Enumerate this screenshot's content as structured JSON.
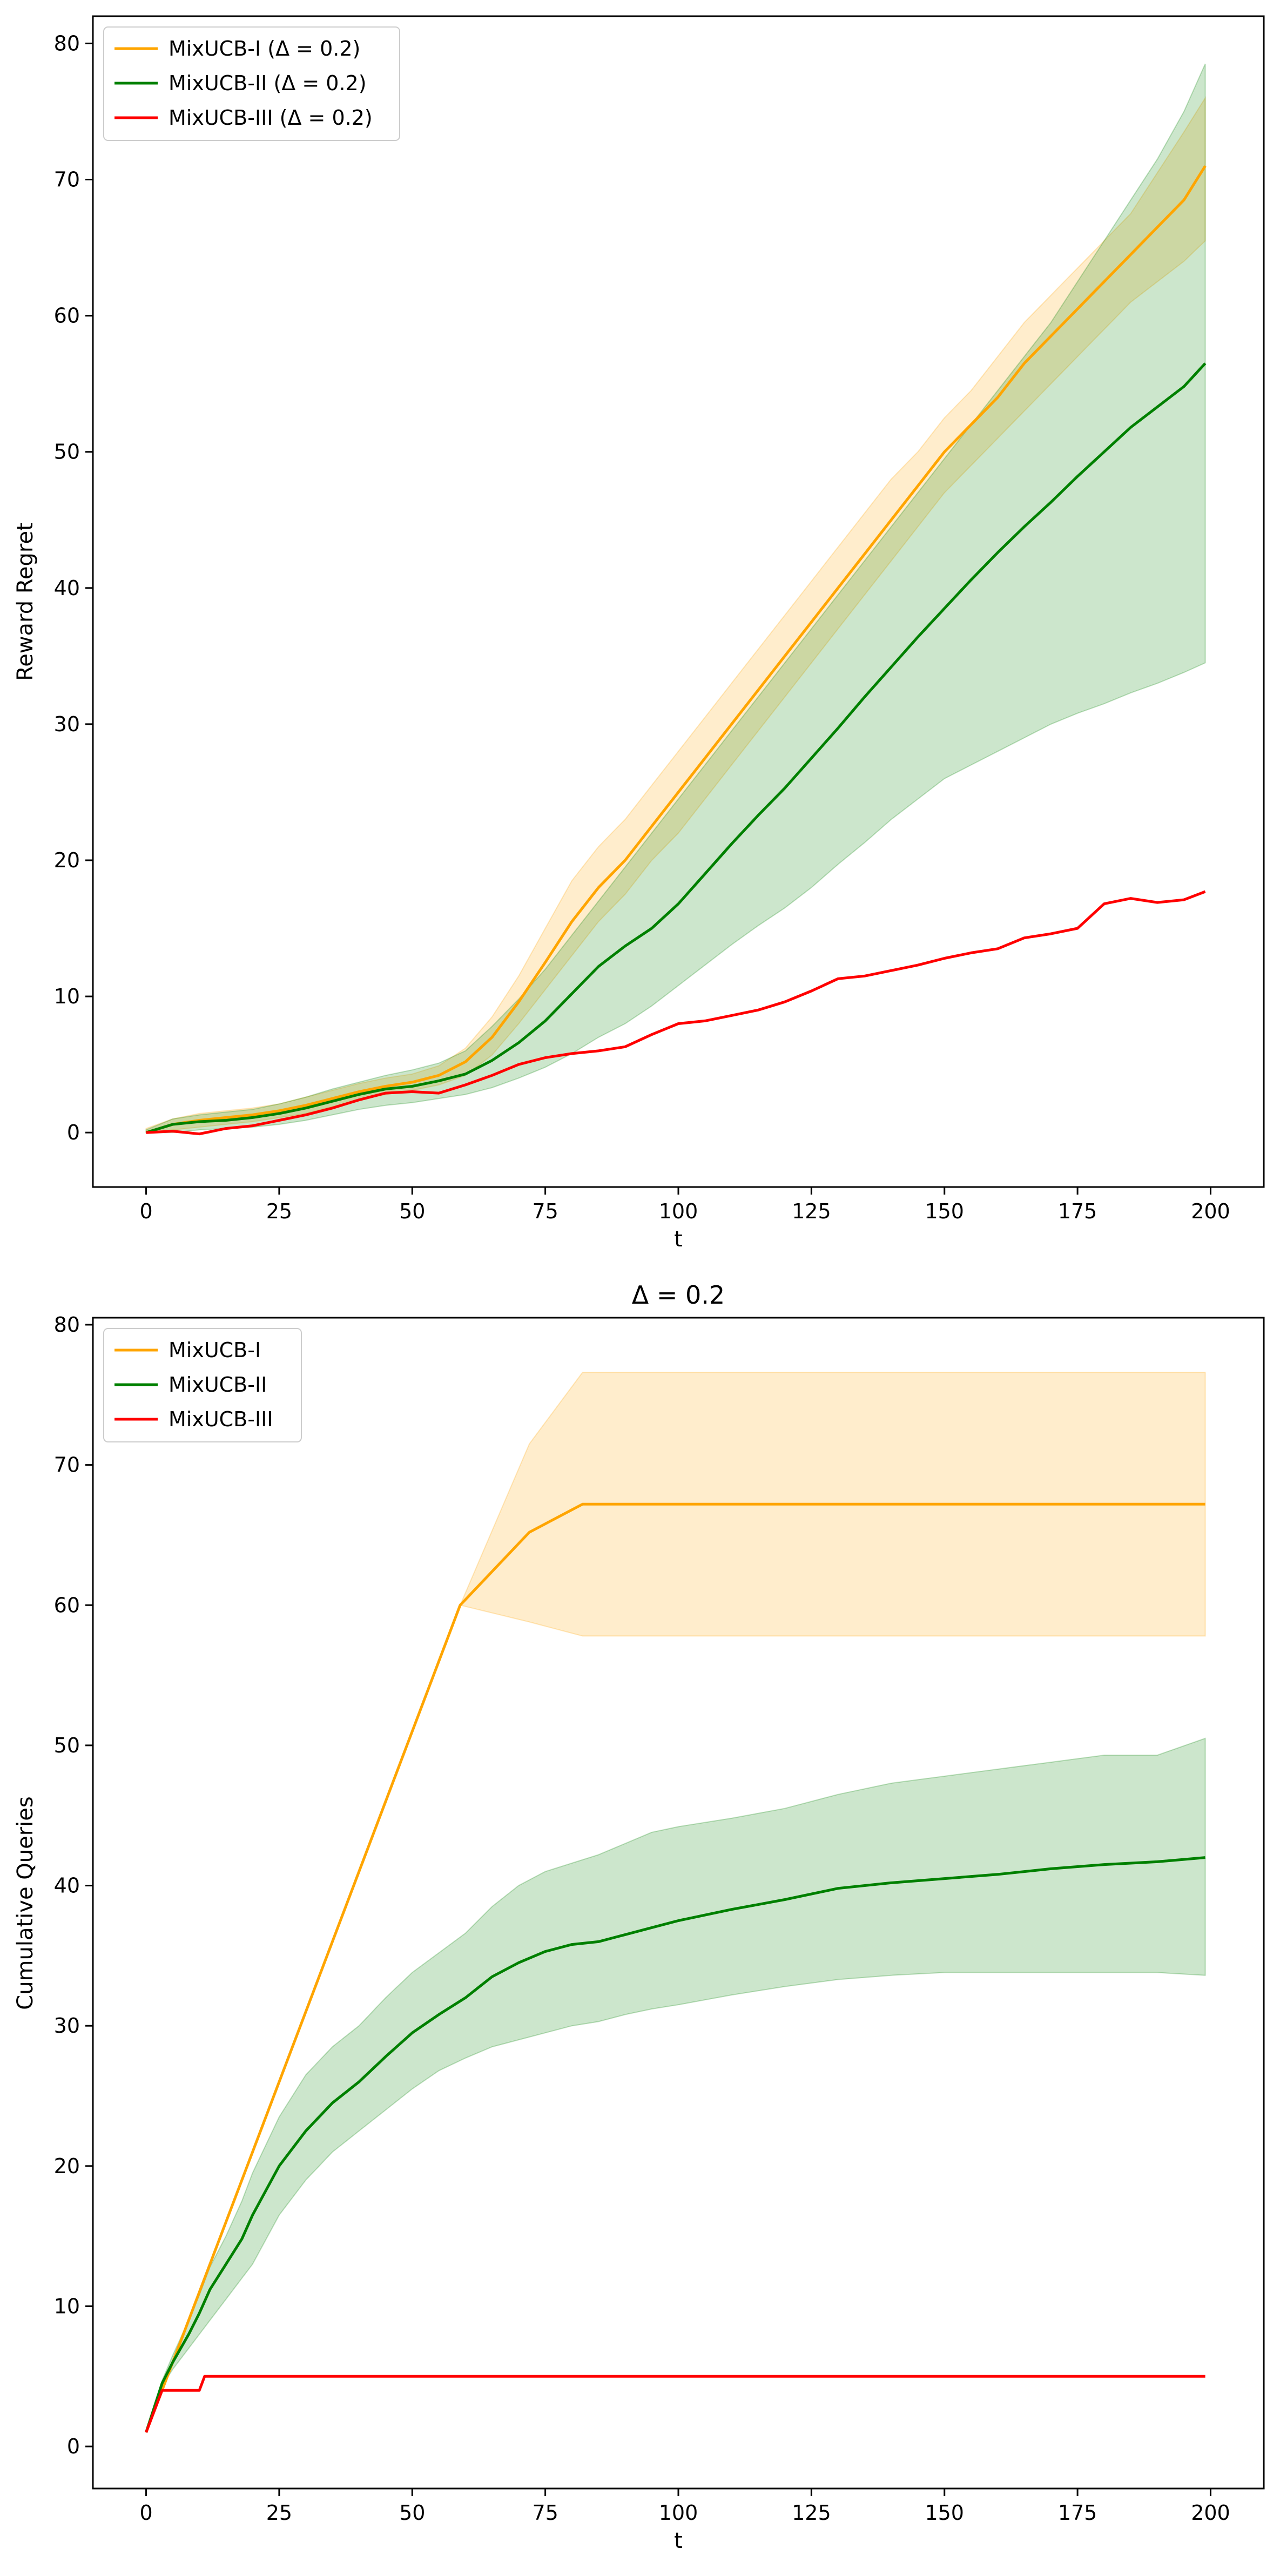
{
  "chart_data": [
    {
      "type": "line",
      "title": "",
      "xlabel": "t",
      "ylabel": "Reward Regret",
      "xlim": [
        -10,
        210
      ],
      "ylim": [
        -4,
        82
      ],
      "xticks": [
        0,
        25,
        50,
        75,
        100,
        125,
        150,
        175,
        200
      ],
      "yticks": [
        0,
        10,
        20,
        30,
        40,
        50,
        60,
        70,
        80
      ],
      "grid": false,
      "legend_position": "top-left",
      "series": [
        {
          "name": "MixUCB-I (Δ = 0.2)",
          "color": "#ffa500",
          "x": [
            0,
            5,
            10,
            15,
            20,
            25,
            30,
            35,
            40,
            45,
            50,
            55,
            60,
            65,
            70,
            75,
            80,
            85,
            90,
            95,
            100,
            105,
            110,
            115,
            120,
            125,
            130,
            135,
            140,
            145,
            150,
            155,
            160,
            165,
            170,
            175,
            180,
            185,
            190,
            195,
            199
          ],
          "y": [
            0,
            0.6,
            0.9,
            1.1,
            1.3,
            1.6,
            2.0,
            2.5,
            3.0,
            3.4,
            3.7,
            4.2,
            5.2,
            7.0,
            9.6,
            12.5,
            15.5,
            18.0,
            20.0,
            22.5,
            25.0,
            27.5,
            30.0,
            32.5,
            35.0,
            37.5,
            40.0,
            42.5,
            45.0,
            47.5,
            50.0,
            52.0,
            54.0,
            56.5,
            58.5,
            60.5,
            62.5,
            64.5,
            66.5,
            68.5,
            71.0
          ],
          "lower": [
            0,
            0.2,
            0.4,
            0.6,
            0.8,
            1.1,
            1.4,
            1.9,
            2.4,
            2.8,
            3.1,
            3.5,
            4.2,
            5.7,
            8.0,
            10.5,
            13.0,
            15.5,
            17.5,
            20.0,
            22.0,
            24.5,
            27.0,
            29.5,
            32.0,
            34.5,
            37.0,
            39.5,
            42.0,
            44.5,
            47.0,
            49.0,
            51.0,
            53.0,
            55.0,
            57.0,
            59.0,
            61.0,
            62.5,
            64.0,
            65.5
          ],
          "upper": [
            0.3,
            1.0,
            1.4,
            1.6,
            1.8,
            2.1,
            2.6,
            3.1,
            3.6,
            4.0,
            4.3,
            4.9,
            6.2,
            8.5,
            11.5,
            15.0,
            18.5,
            21.0,
            23.0,
            25.5,
            28.0,
            30.5,
            33.0,
            35.5,
            38.0,
            40.5,
            43.0,
            45.5,
            48.0,
            50.0,
            52.5,
            54.5,
            57.0,
            59.5,
            61.5,
            63.5,
            65.5,
            67.5,
            70.5,
            73.5,
            76.0
          ]
        },
        {
          "name": "MixUCB-II (Δ = 0.2)",
          "color": "#008000",
          "x": [
            0,
            5,
            10,
            15,
            20,
            25,
            30,
            35,
            40,
            45,
            50,
            55,
            60,
            65,
            70,
            75,
            80,
            85,
            90,
            95,
            100,
            105,
            110,
            115,
            120,
            125,
            130,
            135,
            140,
            145,
            150,
            155,
            160,
            165,
            170,
            175,
            180,
            185,
            190,
            195,
            199
          ],
          "y": [
            0,
            0.6,
            0.8,
            0.9,
            1.1,
            1.4,
            1.8,
            2.3,
            2.8,
            3.2,
            3.4,
            3.8,
            4.3,
            5.3,
            6.6,
            8.2,
            10.2,
            12.2,
            13.7,
            15.0,
            16.8,
            19.0,
            21.2,
            23.3,
            25.3,
            27.5,
            29.7,
            32.0,
            34.2,
            36.4,
            38.5,
            40.6,
            42.6,
            44.5,
            46.3,
            48.2,
            50.0,
            51.8,
            53.3,
            54.8,
            56.5
          ],
          "lower": [
            0,
            0.0,
            0.2,
            0.3,
            0.4,
            0.6,
            0.9,
            1.3,
            1.7,
            2.0,
            2.2,
            2.5,
            2.8,
            3.3,
            4.0,
            4.8,
            5.8,
            7.0,
            8.0,
            9.3,
            10.8,
            12.3,
            13.8,
            15.2,
            16.5,
            18.0,
            19.7,
            21.3,
            23.0,
            24.5,
            26.0,
            27.0,
            28.0,
            29.0,
            30.0,
            30.8,
            31.5,
            32.3,
            33.0,
            33.8,
            34.5
          ],
          "upper": [
            0.2,
            1.0,
            1.3,
            1.5,
            1.7,
            2.1,
            2.6,
            3.2,
            3.7,
            4.2,
            4.6,
            5.1,
            6.0,
            7.8,
            9.8,
            12.0,
            14.5,
            17.0,
            19.5,
            22.0,
            24.5,
            27.0,
            29.5,
            32.0,
            34.5,
            37.0,
            39.5,
            42.0,
            44.5,
            47.0,
            49.5,
            52.0,
            54.5,
            57.0,
            59.5,
            62.5,
            65.5,
            68.5,
            71.5,
            75.0,
            78.5
          ]
        },
        {
          "name": "MixUCB-III (Δ = 0.2)",
          "color": "#ff0000",
          "x": [
            0,
            5,
            10,
            15,
            20,
            25,
            30,
            35,
            40,
            45,
            50,
            55,
            60,
            65,
            70,
            75,
            80,
            85,
            90,
            95,
            100,
            105,
            110,
            115,
            120,
            125,
            130,
            135,
            140,
            145,
            150,
            155,
            160,
            165,
            170,
            175,
            180,
            185,
            190,
            195,
            199
          ],
          "y": [
            0,
            0.1,
            -0.1,
            0.3,
            0.5,
            0.9,
            1.3,
            1.8,
            2.4,
            2.9,
            3.0,
            2.9,
            3.5,
            4.2,
            5.0,
            5.5,
            5.8,
            6.0,
            6.3,
            7.2,
            8.0,
            8.2,
            8.6,
            9.0,
            9.6,
            10.4,
            11.3,
            11.5,
            11.9,
            12.3,
            12.8,
            13.2,
            13.5,
            14.3,
            14.6,
            15.0,
            16.8,
            17.2,
            16.9,
            17.1,
            17.7
          ]
        }
      ]
    },
    {
      "type": "line",
      "title": "Δ = 0.2",
      "xlabel": "t",
      "ylabel": "Cumulative Queries",
      "xlim": [
        -10,
        210
      ],
      "ylim": [
        -3,
        80.5
      ],
      "xticks": [
        0,
        25,
        50,
        75,
        100,
        125,
        150,
        175,
        200
      ],
      "yticks": [
        0,
        10,
        20,
        30,
        40,
        50,
        60,
        70,
        80
      ],
      "grid": false,
      "legend_position": "top-left",
      "series": [
        {
          "name": "MixUCB-I",
          "color": "#ffa500",
          "x": [
            0,
            59,
            72,
            82,
            199
          ],
          "y": [
            1,
            60,
            65.2,
            67.2,
            67.2
          ],
          "lower": [
            1,
            60,
            58.8,
            57.8,
            57.8
          ],
          "upper": [
            1,
            60,
            71.5,
            76.6,
            76.6
          ]
        },
        {
          "name": "MixUCB-II",
          "color": "#008000",
          "x": [
            0,
            3,
            5,
            8,
            10,
            12,
            15,
            18,
            20,
            25,
            30,
            35,
            40,
            45,
            50,
            55,
            60,
            65,
            70,
            75,
            80,
            85,
            90,
            95,
            100,
            110,
            120,
            130,
            140,
            150,
            160,
            170,
            180,
            190,
            199
          ],
          "y": [
            1,
            4.5,
            6,
            8,
            9.5,
            11.2,
            13,
            14.8,
            16.5,
            20,
            22.5,
            24.5,
            26,
            27.8,
            29.5,
            30.8,
            32,
            33.5,
            34.5,
            35.3,
            35.8,
            36,
            36.5,
            37,
            37.5,
            38.3,
            39,
            39.8,
            40.2,
            40.5,
            40.8,
            41.2,
            41.5,
            41.7,
            42
          ],
          "lower": [
            1,
            4.3,
            5.5,
            7.0,
            8.0,
            9.0,
            10.5,
            12.0,
            13.0,
            16.5,
            19.0,
            21.0,
            22.5,
            24.0,
            25.5,
            26.8,
            27.7,
            28.5,
            29.0,
            29.5,
            30.0,
            30.3,
            30.8,
            31.2,
            31.5,
            32.2,
            32.8,
            33.3,
            33.6,
            33.8,
            33.8,
            33.8,
            33.8,
            33.8,
            33.6
          ],
          "upper": [
            1,
            4.7,
            6.5,
            9.0,
            10.8,
            12.8,
            15.0,
            17.5,
            19.5,
            23.5,
            26.5,
            28.5,
            30.0,
            32.0,
            33.8,
            35.2,
            36.6,
            38.5,
            40.0,
            41.0,
            41.6,
            42.2,
            43.0,
            43.8,
            44.2,
            44.8,
            45.5,
            46.5,
            47.3,
            47.8,
            48.3,
            48.8,
            49.3,
            49.3,
            50.5
          ]
        },
        {
          "name": "MixUCB-III",
          "color": "#ff0000",
          "x": [
            0,
            3,
            10,
            11,
            12,
            199
          ],
          "y": [
            1,
            4,
            4,
            5,
            5,
            5
          ]
        }
      ]
    }
  ]
}
